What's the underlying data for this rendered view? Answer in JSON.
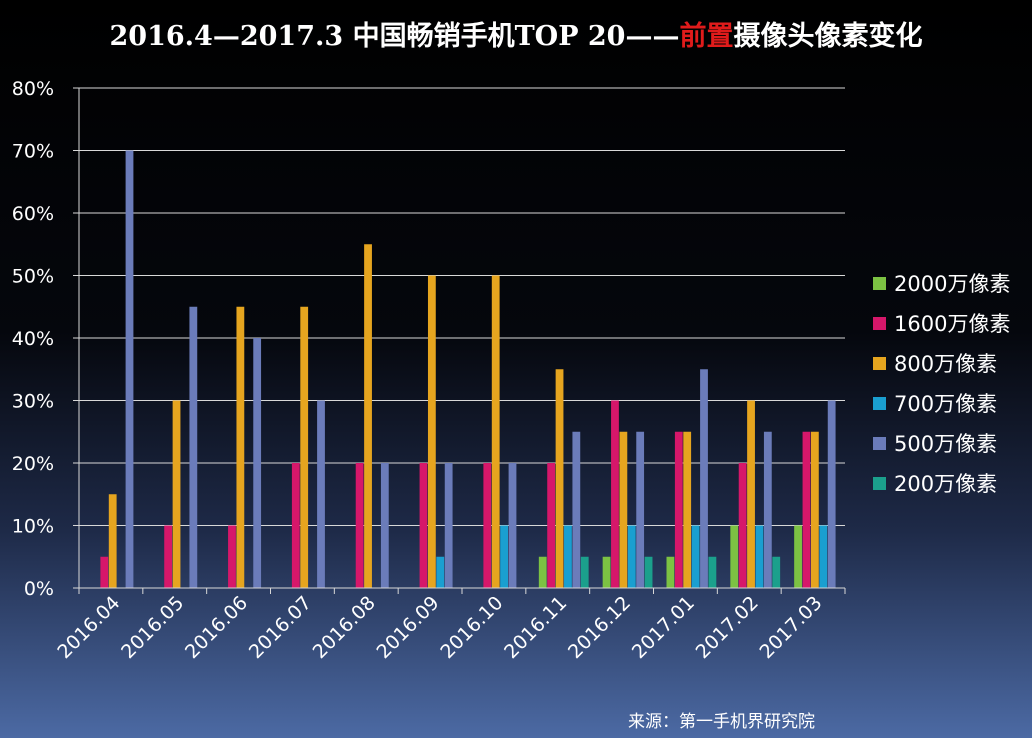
{
  "title": {
    "prefix": "2016.4—2017.3 中国畅销手机TOP 20——",
    "highlight": "前置",
    "suffix": "摄像头像素变化"
  },
  "source": "来源：第一手机界研究院",
  "chart_data": {
    "type": "bar",
    "categories": [
      "2016.04",
      "2016.05",
      "2016.06",
      "2016.07",
      "2016.08",
      "2016.09",
      "2016.10",
      "2016.11",
      "2016.12",
      "2017.01",
      "2017.02",
      "2017.03"
    ],
    "series": [
      {
        "name": "2000万像素",
        "color": "#7cc243",
        "values": [
          0,
          0,
          0,
          0,
          0,
          0,
          0,
          5,
          5,
          5,
          10,
          10
        ]
      },
      {
        "name": "1600万像素",
        "color": "#d6176a",
        "values": [
          5,
          10,
          10,
          20,
          20,
          20,
          20,
          20,
          30,
          25,
          20,
          25
        ]
      },
      {
        "name": "800万像素",
        "color": "#e6a51f",
        "values": [
          15,
          30,
          45,
          45,
          55,
          50,
          50,
          35,
          25,
          25,
          30,
          25
        ]
      },
      {
        "name": "700万像素",
        "color": "#1a9fd0",
        "values": [
          0,
          0,
          0,
          0,
          0,
          5,
          10,
          10,
          10,
          10,
          10,
          10
        ]
      },
      {
        "name": "500万像素",
        "color": "#6b7cba",
        "values": [
          70,
          45,
          40,
          30,
          20,
          20,
          20,
          25,
          25,
          35,
          25,
          30
        ]
      },
      {
        "name": "200万像素",
        "color": "#1ba08c",
        "values": [
          0,
          0,
          0,
          0,
          0,
          0,
          0,
          5,
          5,
          5,
          5,
          0
        ]
      }
    ],
    "yticks": [
      "0%",
      "10%",
      "20%",
      "30%",
      "40%",
      "50%",
      "60%",
      "70%",
      "80%"
    ],
    "ylim": [
      0,
      80
    ],
    "grid": true,
    "legend_position": "right"
  }
}
